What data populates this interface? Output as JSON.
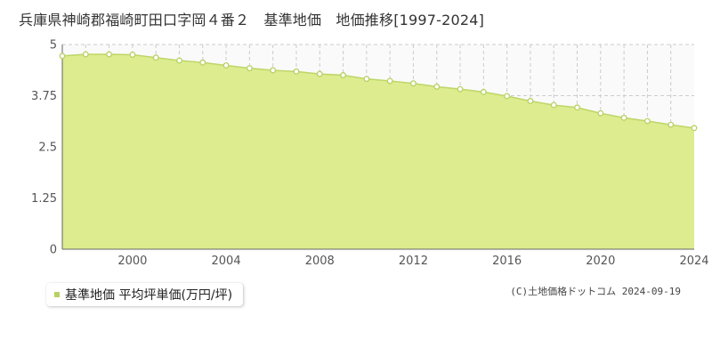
{
  "title": "兵庫県神崎郡福崎町田口字岡４番２　基準地価　地価推移[1997-2024]",
  "legend": {
    "label": "基準地価 平均坪単価(万円/坪)"
  },
  "copyright": "(C)土地価格ドットコム 2024-09-19",
  "colors": {
    "fill": "#dcec8e",
    "line": "#bdd667",
    "marker": "#b7d163",
    "grid": "#cccccc",
    "axis": "#666666"
  },
  "chart_data": {
    "type": "area",
    "title": "",
    "xlabel": "",
    "ylabel": "",
    "xlim": [
      1997,
      2024
    ],
    "ylim": [
      0,
      5
    ],
    "y_ticks": [
      0,
      1.25,
      2.5,
      3.75,
      5
    ],
    "y_tick_labels": [
      "0",
      "1.25",
      "2.5",
      "3.75",
      "5"
    ],
    "x_ticks": [
      2000,
      2004,
      2008,
      2012,
      2016,
      2020,
      2024
    ],
    "x_tick_labels": [
      "2000",
      "2004",
      "2008",
      "2012",
      "2016",
      "2020",
      "2024"
    ],
    "grid": true,
    "legend_position": "bottom-left",
    "series": [
      {
        "name": "基準地価 平均坪単価(万円/坪)",
        "x": [
          1997,
          1998,
          1999,
          2000,
          2001,
          2002,
          2003,
          2004,
          2005,
          2006,
          2007,
          2008,
          2009,
          2010,
          2011,
          2012,
          2013,
          2014,
          2015,
          2016,
          2017,
          2018,
          2019,
          2020,
          2021,
          2022,
          2023,
          2024
        ],
        "y": [
          4.72,
          4.76,
          4.76,
          4.75,
          4.68,
          4.61,
          4.56,
          4.49,
          4.42,
          4.37,
          4.34,
          4.28,
          4.25,
          4.16,
          4.11,
          4.05,
          3.97,
          3.91,
          3.84,
          3.74,
          3.62,
          3.52,
          3.46,
          3.32,
          3.21,
          3.13,
          3.04,
          2.96
        ]
      }
    ]
  }
}
